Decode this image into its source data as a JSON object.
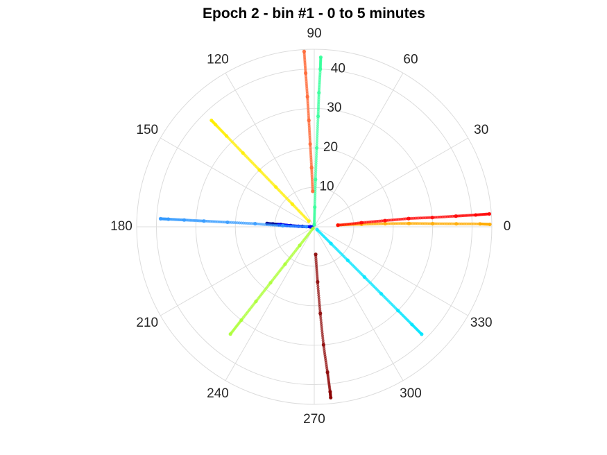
{
  "chart_data": {
    "type": "scatter",
    "coordinate_system": "polar",
    "title": "Epoch 2 - bin #1 - 0 to 5 minutes",
    "theta_unit": "degrees",
    "theta_ticks": [
      0,
      30,
      60,
      90,
      120,
      150,
      180,
      210,
      240,
      270,
      300,
      330
    ],
    "r_ticks": [
      10,
      20,
      30,
      40
    ],
    "r_lim": [
      0,
      45
    ],
    "grid": true,
    "series": [
      {
        "color": "#00008f",
        "points": [
          {
            "theta": 180,
            "r": 1.0
          },
          {
            "theta": 178,
            "r": 3
          },
          {
            "theta": 177,
            "r": 6
          },
          {
            "theta": 176,
            "r": 8.5
          },
          {
            "theta": 176,
            "r": 10.5
          },
          {
            "theta": 176,
            "r": 12
          }
        ]
      },
      {
        "color": "#0000ff",
        "points": [
          {
            "theta": 180,
            "r": 0.5
          },
          {
            "theta": 178,
            "r": 4
          },
          {
            "theta": 177,
            "r": 7
          },
          {
            "theta": 176.5,
            "r": 9
          }
        ]
      },
      {
        "color": "#3399ff",
        "points": [
          {
            "theta": 179,
            "r": 2
          },
          {
            "theta": 178,
            "r": 8
          },
          {
            "theta": 177,
            "r": 15
          },
          {
            "theta": 177,
            "r": 22
          },
          {
            "theta": 177,
            "r": 28
          },
          {
            "theta": 177,
            "r": 33
          },
          {
            "theta": 177,
            "r": 37
          },
          {
            "theta": 177,
            "r": 39
          }
        ]
      },
      {
        "color": "#00e5ff",
        "points": [
          {
            "theta": 315,
            "r": 1
          },
          {
            "theta": 315,
            "r": 6
          },
          {
            "theta": 315,
            "r": 12
          },
          {
            "theta": 315,
            "r": 18
          },
          {
            "theta": 315,
            "r": 24
          },
          {
            "theta": 315,
            "r": 30
          },
          {
            "theta": 315,
            "r": 35
          },
          {
            "theta": 315,
            "r": 38.5
          }
        ]
      },
      {
        "color": "#33ff99",
        "points": [
          {
            "theta": 89,
            "r": 0.5
          },
          {
            "theta": 88.5,
            "r": 5
          },
          {
            "theta": 88.5,
            "r": 12
          },
          {
            "theta": 88.2,
            "r": 20
          },
          {
            "theta": 88.0,
            "r": 28
          },
          {
            "theta": 88.0,
            "r": 34
          },
          {
            "theta": 87.8,
            "r": 40
          },
          {
            "theta": 87.8,
            "r": 43
          }
        ]
      },
      {
        "color": "#aaff33",
        "points": [
          {
            "theta": 232,
            "r": 0.5
          },
          {
            "theta": 232,
            "r": 6
          },
          {
            "theta": 232,
            "r": 12
          },
          {
            "theta": 232,
            "r": 18
          },
          {
            "theta": 232,
            "r": 24
          },
          {
            "theta": 232,
            "r": 30
          },
          {
            "theta": 232,
            "r": 34.5
          }
        ]
      },
      {
        "color": "#ffee00",
        "points": [
          {
            "theta": 134,
            "r": 2
          },
          {
            "theta": 134,
            "r": 8
          },
          {
            "theta": 134,
            "r": 14
          },
          {
            "theta": 134,
            "r": 20
          },
          {
            "theta": 134,
            "r": 26
          },
          {
            "theta": 134,
            "r": 32
          },
          {
            "theta": 134,
            "r": 36
          },
          {
            "theta": 134,
            "r": 37.5
          }
        ]
      },
      {
        "color": "#ffaa00",
        "points": [
          {
            "theta": 4,
            "r": 6
          },
          {
            "theta": 3,
            "r": 12
          },
          {
            "theta": 2.5,
            "r": 18
          },
          {
            "theta": 2.0,
            "r": 24
          },
          {
            "theta": 1.5,
            "r": 30
          },
          {
            "theta": 1.2,
            "r": 36
          },
          {
            "theta": 1.0,
            "r": 42
          },
          {
            "theta": 0.8,
            "r": 44.5
          }
        ]
      },
      {
        "color": "#ff6633",
        "points": [
          {
            "theta": 92.5,
            "r": 9
          },
          {
            "theta": 92.6,
            "r": 15
          },
          {
            "theta": 92.8,
            "r": 21
          },
          {
            "theta": 92.9,
            "r": 27
          },
          {
            "theta": 93.0,
            "r": 33
          },
          {
            "theta": 93.2,
            "r": 39
          },
          {
            "theta": 93.3,
            "r": 44.5
          }
        ]
      },
      {
        "color": "#ff0000",
        "points": [
          {
            "theta": 4,
            "r": 6
          },
          {
            "theta": 5,
            "r": 12
          },
          {
            "theta": 5,
            "r": 18
          },
          {
            "theta": 5,
            "r": 24
          },
          {
            "theta": 4.5,
            "r": 30
          },
          {
            "theta": 4.3,
            "r": 36
          },
          {
            "theta": 4.2,
            "r": 41
          },
          {
            "theta": 4.2,
            "r": 44.5
          }
        ]
      },
      {
        "color": "#8b0000",
        "points": [
          {
            "theta": 273,
            "r": 7
          },
          {
            "theta": 273.5,
            "r": 14
          },
          {
            "theta": 274,
            "r": 22
          },
          {
            "theta": 274.5,
            "r": 30
          },
          {
            "theta": 275.2,
            "r": 37
          },
          {
            "theta": 275.5,
            "r": 42
          },
          {
            "theta": 275.5,
            "r": 43.5
          }
        ]
      }
    ]
  }
}
